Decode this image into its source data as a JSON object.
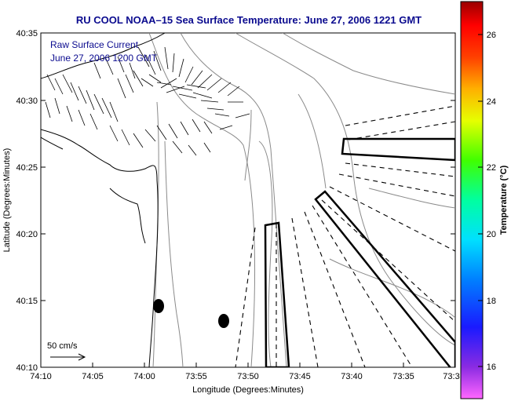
{
  "title": "RU COOL  NOAA–15  Sea Surface Temperature:  June 27, 2006 1221 GMT",
  "overlay": {
    "line1": "Raw Surface Current",
    "line2": "June 27, 2006 1200 GMT"
  },
  "axes": {
    "xlabel": "Longitude (Degrees:Minutes)",
    "ylabel": "Latitude (Degrees:Minutes)",
    "xticks": [
      "74:10",
      "74:05",
      "74:00",
      "73:55",
      "73:50",
      "73:45",
      "73:40",
      "73:35",
      "73:3"
    ],
    "yticks": [
      "40:35",
      "40:30",
      "40:25",
      "40:20",
      "40:15",
      "40:10"
    ]
  },
  "scale_label": "50 cm/s",
  "colorbar": {
    "label": "Temperature (°C)",
    "ticks": [
      "26",
      "24",
      "22",
      "20",
      "18",
      "16"
    ],
    "min": 15,
    "max": 27
  },
  "colors": {
    "title": "#0b0b8f",
    "axis": "#000000",
    "contour": "#8a8a8a",
    "coast": "#000000"
  }
}
